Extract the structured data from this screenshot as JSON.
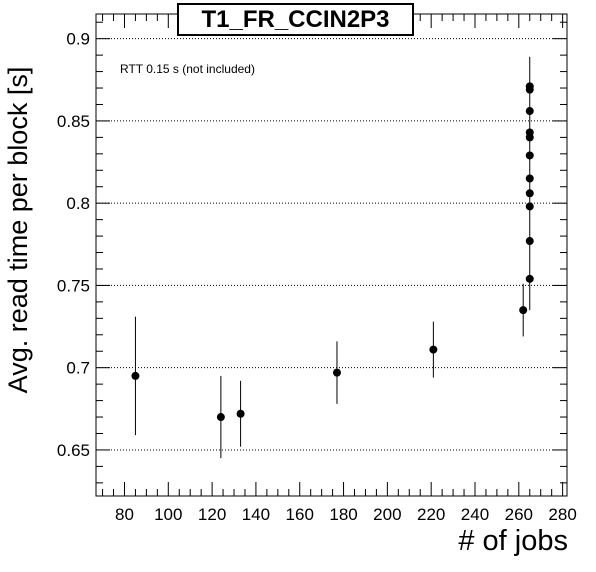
{
  "chart_data": {
    "type": "scatter",
    "title": "T1_FR_CCIN2P3",
    "xlabel": "# of jobs",
    "ylabel": "Avg. read time per block [s]",
    "annotation": "RTT 0.15 s (not included)",
    "xlim": [
      67,
      282
    ],
    "ylim": [
      0.622,
      0.915
    ],
    "x_ticks": [
      80,
      100,
      120,
      140,
      160,
      180,
      200,
      220,
      240,
      260,
      280
    ],
    "y_ticks": [
      0.65,
      0.7,
      0.75,
      0.8,
      0.85,
      0.9
    ],
    "grid": "horizontal dotted",
    "points": [
      {
        "x": 85,
        "y": 0.695,
        "err": 0.036
      },
      {
        "x": 124,
        "y": 0.67,
        "err": 0.025
      },
      {
        "x": 133,
        "y": 0.672,
        "err": 0.02
      },
      {
        "x": 177,
        "y": 0.697,
        "err": 0.019
      },
      {
        "x": 221,
        "y": 0.711,
        "err": 0.017
      },
      {
        "x": 262,
        "y": 0.735,
        "err": 0.016
      },
      {
        "x": 265,
        "y": 0.754,
        "err": 0.0
      },
      {
        "x": 265,
        "y": 0.777,
        "err": 0.0
      },
      {
        "x": 265,
        "y": 0.798,
        "err": 0.0
      },
      {
        "x": 265,
        "y": 0.806,
        "err": 0.0
      },
      {
        "x": 265,
        "y": 0.815,
        "err": 0.0
      },
      {
        "x": 265,
        "y": 0.829,
        "err": 0.0
      },
      {
        "x": 265,
        "y": 0.84,
        "err": 0.0
      },
      {
        "x": 265,
        "y": 0.843,
        "err": 0.0
      },
      {
        "x": 265,
        "y": 0.856,
        "err": 0.0
      },
      {
        "x": 265,
        "y": 0.869,
        "err": 0.0
      },
      {
        "x": 265,
        "y": 0.871,
        "err": 0.0
      }
    ],
    "vertical_bar": {
      "x": 265,
      "y_low": 0.735,
      "y_high": 0.889
    },
    "marker_color": "#000000"
  }
}
